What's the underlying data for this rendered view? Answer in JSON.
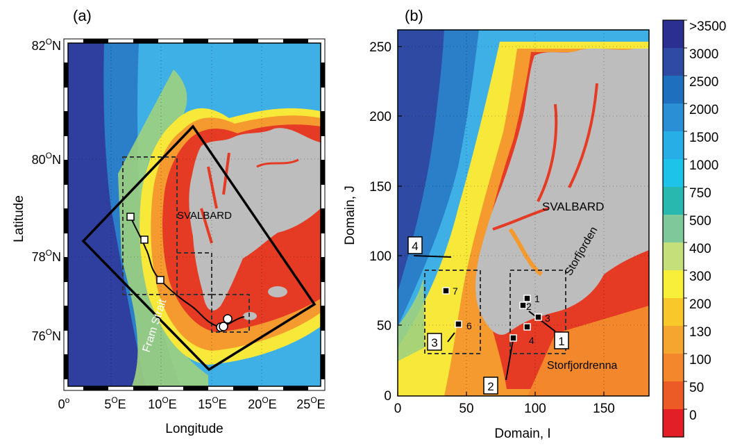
{
  "panel_a": {
    "label": "(a)",
    "xlabel": "Longitude",
    "ylabel": "Latitude",
    "lat_ticks": [
      {
        "deg": "82",
        "sup": "O",
        "hem": "N"
      },
      {
        "deg": "80",
        "sup": "O",
        "hem": "N"
      },
      {
        "deg": "78",
        "sup": "O",
        "hem": "N"
      },
      {
        "deg": "76",
        "sup": "O",
        "hem": "N"
      }
    ],
    "lon_ticks": [
      {
        "deg": "0",
        "sup": "o",
        "hem": ""
      },
      {
        "deg": "5",
        "sup": "O",
        "hem": "E"
      },
      {
        "deg": "10",
        "sup": "O",
        "hem": "E"
      },
      {
        "deg": "15",
        "sup": "O",
        "hem": "E"
      },
      {
        "deg": "20",
        "sup": "O",
        "hem": "E"
      },
      {
        "deg": "25",
        "sup": "O",
        "hem": "E"
      }
    ],
    "place_labels": {
      "svalbard": "SVALBARD",
      "fram_strait": "Fram Strait"
    }
  },
  "panel_b": {
    "label": "(b)",
    "xlabel": "Domain, I",
    "ylabel": "Domain, J",
    "x_ticks": [
      "0",
      "50",
      "100",
      "150"
    ],
    "y_ticks": [
      "0",
      "50",
      "100",
      "150",
      "200",
      "250"
    ],
    "place_labels": {
      "svalbard": "SVALBARD",
      "storfjorden": "Storfjorden",
      "storfjordrenna": "Storfjordrenna"
    },
    "boxed_labels": [
      "4",
      "3",
      "1",
      "2"
    ],
    "station_labels": [
      "7",
      "6",
      "1",
      "2",
      "3",
      "4"
    ]
  },
  "colorbar": {
    "labels": [
      ">3500",
      "3000",
      "2500",
      "2000",
      "1500",
      "1000",
      "750",
      "500",
      "400",
      "300",
      "200",
      "130",
      "100",
      "50",
      "0"
    ],
    "colors": [
      "#2b2f8f",
      "#2f4aa3",
      "#1f6fbf",
      "#2a8fd4",
      "#27aee6",
      "#1ec3ea",
      "#28b8b0",
      "#7ec89a",
      "#c5e07a",
      "#f7ef3a",
      "#f8c82a",
      "#f5a62e",
      "#f2872c",
      "#ec5a26",
      "#e21f26"
    ]
  },
  "map_colors": {
    "land": "#bdbdbd",
    "deep": "#2f3f9f",
    "mid": "#2a7fc8",
    "slope": "#3fb0e6",
    "shelf_green": "#9fd27e",
    "shelf_yellow": "#f7e83a",
    "shallow_orange": "#f59a2e",
    "coast_red": "#e53a24"
  }
}
